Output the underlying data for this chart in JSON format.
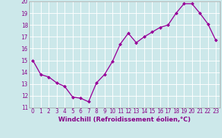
{
  "x": [
    0,
    1,
    2,
    3,
    4,
    5,
    6,
    7,
    8,
    9,
    10,
    11,
    12,
    13,
    14,
    15,
    16,
    17,
    18,
    19,
    20,
    21,
    22,
    23
  ],
  "y": [
    15.0,
    13.8,
    13.6,
    13.1,
    12.8,
    11.9,
    11.8,
    11.5,
    13.1,
    13.8,
    14.9,
    16.4,
    17.3,
    16.5,
    17.0,
    17.4,
    17.8,
    18.0,
    19.0,
    19.8,
    19.8,
    19.0,
    18.1,
    16.7
  ],
  "line_color": "#990099",
  "marker": "D",
  "marker_size": 2.2,
  "bg_color": "#cce8ea",
  "grid_color": "#ffffff",
  "xlabel": "Windchill (Refroidissement éolien,°C)",
  "xlabel_color": "#880088",
  "tick_color": "#880088",
  "ylim": [
    11,
    20
  ],
  "xlim_min": -0.5,
  "xlim_max": 23.5,
  "yticks": [
    11,
    12,
    13,
    14,
    15,
    16,
    17,
    18,
    19,
    20
  ],
  "xticks": [
    0,
    1,
    2,
    3,
    4,
    5,
    6,
    7,
    8,
    9,
    10,
    11,
    12,
    13,
    14,
    15,
    16,
    17,
    18,
    19,
    20,
    21,
    22,
    23
  ],
  "xtick_labels": [
    "0",
    "1",
    "2",
    "3",
    "4",
    "5",
    "6",
    "7",
    "8",
    "9",
    "10",
    "11",
    "12",
    "13",
    "14",
    "15",
    "16",
    "17",
    "18",
    "19",
    "20",
    "21",
    "22",
    "23"
  ],
  "tick_fontsize": 5.5,
  "xlabel_fontsize": 6.5,
  "line_width": 1.0
}
